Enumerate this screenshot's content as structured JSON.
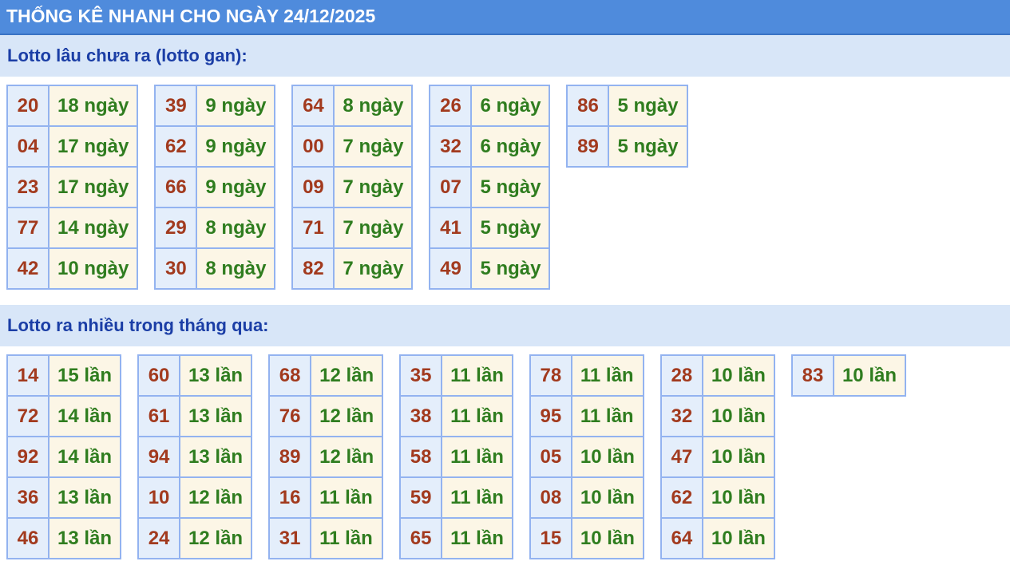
{
  "header": {
    "title": "THỐNG KÊ NHANH CHO NGÀY 24/12/2025"
  },
  "gan": {
    "title": "Lotto lâu chưa ra (lotto gan):",
    "groups": [
      [
        [
          "20",
          "18 ngày"
        ],
        [
          "04",
          "17 ngày"
        ],
        [
          "23",
          "17 ngày"
        ],
        [
          "77",
          "14 ngày"
        ],
        [
          "42",
          "10 ngày"
        ]
      ],
      [
        [
          "39",
          "9 ngày"
        ],
        [
          "62",
          "9 ngày"
        ],
        [
          "66",
          "9 ngày"
        ],
        [
          "29",
          "8 ngày"
        ],
        [
          "30",
          "8 ngày"
        ]
      ],
      [
        [
          "64",
          "8 ngày"
        ],
        [
          "00",
          "7 ngày"
        ],
        [
          "09",
          "7 ngày"
        ],
        [
          "71",
          "7 ngày"
        ],
        [
          "82",
          "7 ngày"
        ]
      ],
      [
        [
          "26",
          "6 ngày"
        ],
        [
          "32",
          "6 ngày"
        ],
        [
          "07",
          "5 ngày"
        ],
        [
          "41",
          "5 ngày"
        ],
        [
          "49",
          "5 ngày"
        ]
      ],
      [
        [
          "86",
          "5 ngày"
        ],
        [
          "89",
          "5 ngày"
        ]
      ]
    ]
  },
  "nhieu": {
    "title": "Lotto ra nhiều trong tháng qua:",
    "groups": [
      [
        [
          "14",
          "15 lần"
        ],
        [
          "72",
          "14 lần"
        ],
        [
          "92",
          "14 lần"
        ],
        [
          "36",
          "13 lần"
        ],
        [
          "46",
          "13 lần"
        ]
      ],
      [
        [
          "60",
          "13 lần"
        ],
        [
          "61",
          "13 lần"
        ],
        [
          "94",
          "13 lần"
        ],
        [
          "10",
          "12 lần"
        ],
        [
          "24",
          "12 lần"
        ]
      ],
      [
        [
          "68",
          "12 lần"
        ],
        [
          "76",
          "12 lần"
        ],
        [
          "89",
          "12 lần"
        ],
        [
          "16",
          "11 lần"
        ],
        [
          "31",
          "11 lần"
        ]
      ],
      [
        [
          "35",
          "11 lần"
        ],
        [
          "38",
          "11 lần"
        ],
        [
          "58",
          "11 lần"
        ],
        [
          "59",
          "11 lần"
        ],
        [
          "65",
          "11 lần"
        ]
      ],
      [
        [
          "78",
          "11 lần"
        ],
        [
          "95",
          "11 lần"
        ],
        [
          "05",
          "10 lần"
        ],
        [
          "08",
          "10 lần"
        ],
        [
          "15",
          "10 lần"
        ]
      ],
      [
        [
          "28",
          "10 lần"
        ],
        [
          "32",
          "10 lần"
        ],
        [
          "47",
          "10 lần"
        ],
        [
          "62",
          "10 lần"
        ],
        [
          "64",
          "10 lần"
        ]
      ],
      [
        [
          "83",
          "10 lần"
        ]
      ]
    ]
  },
  "colors": {
    "header": "#4f8bdc",
    "section": "#d8e6f8",
    "number": "#a23a1e",
    "value": "#2f7d1f"
  }
}
